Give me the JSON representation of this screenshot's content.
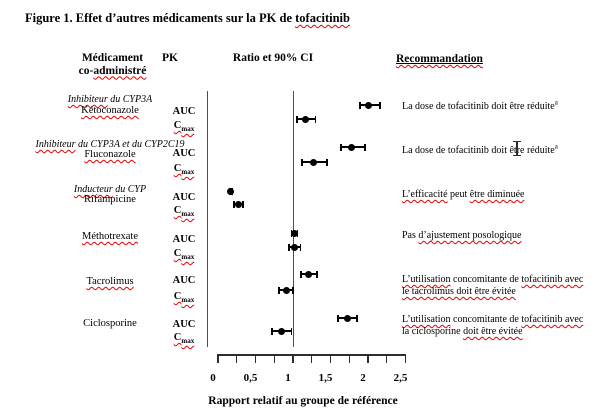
{
  "title": {
    "text_before": "Figure 1. Effet d’autres médicaments sur la PK de ",
    "highlight": "tofacitinib"
  },
  "header": {
    "col1_line1": "Médicament",
    "col1_line2_prefix": "co-",
    "col1_line2_word": "administré",
    "col2": "PK",
    "col3": "Ratio et 90% CI",
    "col4": "Recommandation"
  },
  "pk": {
    "auc": "AUC",
    "cmax_main": "C",
    "cmax_sub": "max"
  },
  "rows": [
    {
      "group": [
        {
          "t": "Inhibiteur",
          "w": 1
        },
        {
          "t": " du CYP3A",
          "w": 0
        }
      ],
      "drug": [
        {
          "t": "Kétoconazole",
          "w": 1
        }
      ],
      "rec": [
        [
          {
            "t": "La dose de tofacitinib doit être réduite",
            "w": 0
          },
          {
            "t": "a",
            "sup": 1
          }
        ]
      ]
    },
    {
      "group": [
        {
          "t": "Inhibiteur",
          "w": 1
        },
        {
          "t": " du CYP3A et du CYP2C19",
          "w": 0
        }
      ],
      "drug": [
        {
          "t": "Fluconazole",
          "w": 1
        }
      ],
      "rec": [
        [
          {
            "t": "La dose de tofacitinib doit être réduite",
            "w": 0
          },
          {
            "t": "a",
            "sup": 1
          }
        ]
      ]
    },
    {
      "group": [
        {
          "t": "Inducteur",
          "w": 1
        },
        {
          "t": " du CYP",
          "w": 0
        }
      ],
      "drug": [
        {
          "t": "Rifampicine",
          "w": 0
        }
      ],
      "rec": [
        [
          {
            "t": "L’efficacité",
            "w": 1
          },
          {
            "t": " peut ",
            "w": 0
          },
          {
            "t": "être diminuée",
            "w": 1
          }
        ]
      ]
    },
    {
      "drug": [
        {
          "t": "Méthotrexate",
          "w": 1
        }
      ],
      "rec": [
        [
          {
            "t": "Pas ",
            "w": 0
          },
          {
            "t": "d’ajustement posologique",
            "w": 1
          }
        ]
      ]
    },
    {
      "drug": [
        {
          "t": "Tacrolimus",
          "w": 1
        }
      ],
      "rec": [
        [
          {
            "t": "L’utilisation",
            "w": 1
          },
          {
            "t": " concomitante de ",
            "w": 0
          },
          {
            "t": "tofacitinib avec",
            "w": 1
          }
        ],
        [
          {
            "t": "le tacrolimus doit être évitée",
            "w": 1
          }
        ]
      ]
    },
    {
      "drug": [
        {
          "t": "Ciclosporine",
          "w": 0
        }
      ],
      "rec": [
        [
          {
            "t": "L’utilisation",
            "w": 1
          },
          {
            "t": " concomitante de ",
            "w": 0
          },
          {
            "t": "tofacitinib avec",
            "w": 1
          }
        ],
        [
          {
            "t": "la ciclosporine ",
            "w": 0
          },
          {
            "t": "doit être évitée",
            "w": 1
          }
        ]
      ]
    }
  ],
  "chart_data": {
    "type": "scatter",
    "variant": "forest-plot",
    "title": "Figure 1. Effet d’autres médicaments sur la PK de tofacitinib",
    "xlabel": "Rapport relatif au groupe de référence",
    "xlim": [
      0,
      2.5
    ],
    "x_ticks": [
      0,
      0.5,
      1,
      1.5,
      2,
      2.5
    ],
    "x_tick_labels": [
      "0",
      "0,5",
      "1",
      "1,5",
      "2",
      "2,5"
    ],
    "minor_tick_step": 0.25,
    "reference_line_x": 1.0,
    "ci_level": "90%",
    "series": [
      {
        "name": "Kétoconazole",
        "points": [
          {
            "pk": "AUC",
            "ratio": 2.0,
            "ci90": [
              1.89,
              2.16
            ]
          },
          {
            "pk": "Cmax",
            "ratio": 1.16,
            "ci90": [
              1.05,
              1.3
            ]
          }
        ]
      },
      {
        "name": "Fluconazole",
        "points": [
          {
            "pk": "AUC",
            "ratio": 1.78,
            "ci90": [
              1.64,
              1.96
            ]
          },
          {
            "pk": "Cmax",
            "ratio": 1.27,
            "ci90": [
              1.12,
              1.45
            ]
          }
        ]
      },
      {
        "name": "Rifampicine",
        "points": [
          {
            "pk": "AUC",
            "ratio": 0.17,
            "ci90": [
              0.16,
              0.19
            ]
          },
          {
            "pk": "Cmax",
            "ratio": 0.27,
            "ci90": [
              0.21,
              0.33
            ]
          }
        ]
      },
      {
        "name": "Méthotrexate",
        "points": [
          {
            "pk": "AUC",
            "ratio": 1.02,
            "ci90": [
              0.98,
              1.06
            ]
          },
          {
            "pk": "Cmax",
            "ratio": 1.02,
            "ci90": [
              0.95,
              1.1
            ]
          }
        ]
      },
      {
        "name": "Tacrolimus",
        "points": [
          {
            "pk": "AUC",
            "ratio": 1.21,
            "ci90": [
              1.11,
              1.32
            ]
          },
          {
            "pk": "Cmax",
            "ratio": 0.91,
            "ci90": [
              0.81,
              1.0
            ]
          }
        ]
      },
      {
        "name": "Ciclosporine",
        "points": [
          {
            "pk": "AUC",
            "ratio": 1.73,
            "ci90": [
              1.6,
              1.85
            ]
          },
          {
            "pk": "Cmax",
            "ratio": 0.84,
            "ci90": [
              0.72,
              0.98
            ]
          }
        ]
      }
    ]
  },
  "colors": {
    "background": "#ffffff",
    "text": "#000000",
    "marker": "#000000",
    "spellcheck": "#e60000",
    "axis": "#2e2e2e"
  }
}
